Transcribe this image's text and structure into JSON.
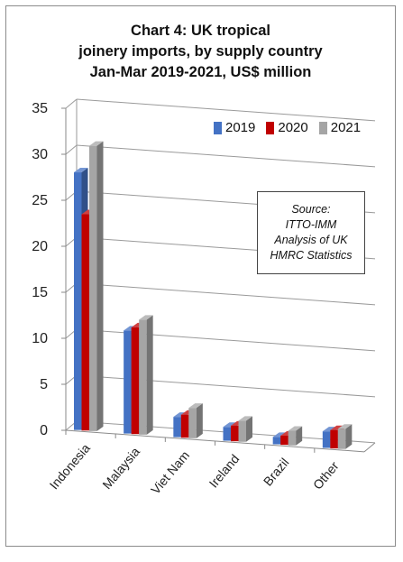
{
  "chart_data": {
    "type": "bar",
    "title": [
      "Chart 4: UK tropical",
      "joinery imports, by supply country",
      "Jan-Mar 2019-2021, US$ million"
    ],
    "categories": [
      "Indonesia",
      "Malaysia",
      "Viet Nam",
      "Ireland",
      "Brazil",
      "Other"
    ],
    "series": [
      {
        "name": "2019",
        "values": [
          28.0,
          11.2,
          2.2,
          1.5,
          0.8,
          1.8
        ]
      },
      {
        "name": "2020",
        "values": [
          23.5,
          11.6,
          2.5,
          1.7,
          1.0,
          2.0
        ]
      },
      {
        "name": "2021",
        "values": [
          31.0,
          12.5,
          3.3,
          2.3,
          1.6,
          2.2
        ]
      }
    ],
    "ylim": [
      0,
      35
    ],
    "yticks": [
      0,
      5,
      10,
      15,
      20,
      25,
      30,
      35
    ],
    "grid": true,
    "legend_position": "top-right",
    "colors": [
      "#4472c4",
      "#c00000",
      "#a5a5a5"
    ],
    "annotation": [
      "Source:",
      "ITTO-IMM",
      "Analysis of UK",
      "HMRC Statistics"
    ]
  }
}
